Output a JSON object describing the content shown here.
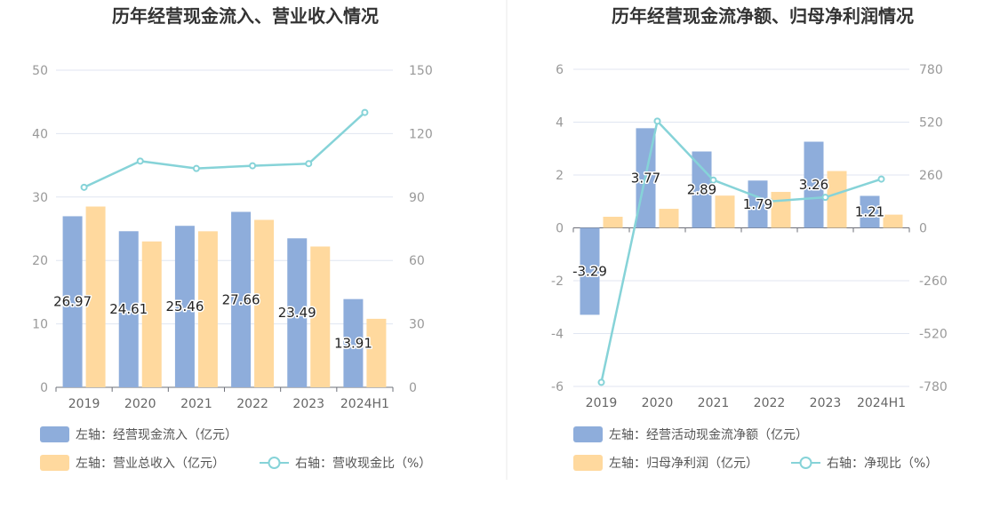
{
  "chart_data": [
    {
      "type": "bar",
      "title": "历年经营现金流入、营业收入情况",
      "categories": [
        "2019",
        "2020",
        "2021",
        "2022",
        "2023",
        "2024H1"
      ],
      "left_axis": {
        "ylim": [
          0,
          50
        ],
        "ticks": [
          "0",
          "10",
          "20",
          "30",
          "40",
          "50"
        ]
      },
      "right_axis": {
        "ylim": [
          0,
          150
        ],
        "ticks": [
          "0",
          "30",
          "60",
          "90",
          "120",
          "150"
        ]
      },
      "series": [
        {
          "name": "左轴：经营现金流入（亿元）",
          "kind": "bar",
          "axis": "left",
          "color": "#8eaddb",
          "values": [
            26.97,
            24.61,
            25.46,
            27.66,
            23.49,
            13.91
          ],
          "labels": [
            "26.97",
            "24.61",
            "25.46",
            "27.66",
            "23.49",
            "13.91"
          ]
        },
        {
          "name": "左轴：营业总收入（亿元）",
          "kind": "bar",
          "axis": "left",
          "color": "#ffd99e",
          "values": [
            28.5,
            23.0,
            24.6,
            26.4,
            22.2,
            10.8
          ]
        },
        {
          "name": "右轴：营收现金比（%）",
          "kind": "line",
          "axis": "right",
          "color": "#86d3d8",
          "values": [
            94.6,
            107.0,
            103.5,
            104.8,
            105.8,
            130.0
          ]
        }
      ]
    },
    {
      "type": "bar",
      "title": "历年经营现金流净额、归母净利润情况",
      "categories": [
        "2019",
        "2020",
        "2021",
        "2022",
        "2023",
        "2024H1"
      ],
      "left_axis": {
        "ylim": [
          -6,
          6
        ],
        "ticks": [
          "-6",
          "-4",
          "-2",
          "0",
          "2",
          "4",
          "6"
        ]
      },
      "right_axis": {
        "ylim": [
          -780,
          780
        ],
        "ticks": [
          "-780",
          "-520",
          "-260",
          "0",
          "260",
          "520",
          "780"
        ]
      },
      "series": [
        {
          "name": "左轴：经营活动现金流净额（亿元）",
          "kind": "bar",
          "axis": "left",
          "color": "#8eaddb",
          "values": [
            -3.29,
            3.77,
            2.89,
            1.79,
            3.26,
            1.21
          ],
          "labels": [
            "-3.29",
            "3.77",
            "2.89",
            "1.79",
            "3.26",
            "1.21"
          ]
        },
        {
          "name": "左轴：归母净利润（亿元）",
          "kind": "bar",
          "axis": "left",
          "color": "#ffd99e",
          "values": [
            0.42,
            0.72,
            1.22,
            1.36,
            2.15,
            0.5
          ]
        },
        {
          "name": "右轴：净现比（%）",
          "kind": "line",
          "axis": "right",
          "color": "#86d3d8",
          "values": [
            -760,
            525,
            235,
            130,
            150,
            240
          ]
        }
      ]
    }
  ]
}
